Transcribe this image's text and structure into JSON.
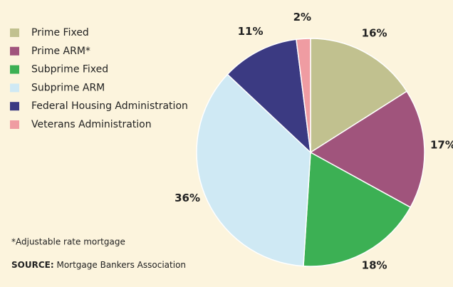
{
  "chart_data": {
    "type": "pie",
    "categories": [
      "Prime Fixed",
      "Prime ARM*",
      "Subprime Fixed",
      "Subprime ARM",
      "Federal Housing Administration",
      "Veterans Administration"
    ],
    "values": [
      16,
      17,
      18,
      36,
      11,
      2
    ],
    "value_labels": [
      "16%",
      "17%",
      "18%",
      "36%",
      "11%",
      "2%"
    ],
    "colors": [
      "#c1c18f",
      "#a0547c",
      "#3cb054",
      "#cfe9f4",
      "#3b3a82",
      "#ef9ca2"
    ],
    "legend": "upper left",
    "footnote": "*Adjustable rate mortgage",
    "source_label": "SOURCE:",
    "source": "Mortgage Bankers Association"
  }
}
